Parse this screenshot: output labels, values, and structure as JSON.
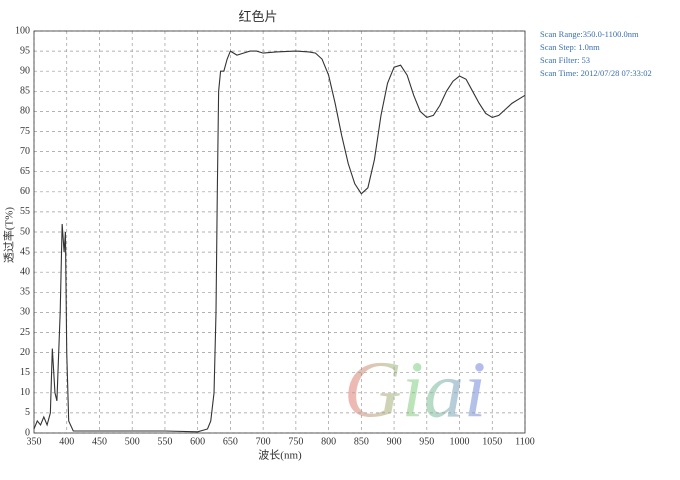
{
  "chart_data": {
    "type": "line",
    "title": "红色片",
    "x_label": "波长(nm)",
    "y_label": "透过率(T%)",
    "annotations": [
      "Scan Range:350.0-1100.0nm",
      "Scan Step:  1.0nm",
      "Scan Filter:  53",
      "Scan Time: 2012/07/28  07:33:02"
    ],
    "watermark": "Giai",
    "color": "#333333",
    "grid": true,
    "x": [
      350,
      355,
      360,
      365,
      370,
      375,
      378,
      382,
      385,
      390,
      393,
      396,
      398,
      400,
      403,
      410,
      450,
      500,
      550,
      600,
      615,
      620,
      625,
      628,
      630,
      632,
      635,
      640,
      645,
      650,
      655,
      660,
      670,
      680,
      690,
      700,
      720,
      750,
      770,
      780,
      790,
      800,
      810,
      820,
      830,
      840,
      850,
      860,
      870,
      880,
      890,
      900,
      910,
      920,
      930,
      940,
      950,
      960,
      970,
      980,
      990,
      1000,
      1010,
      1020,
      1030,
      1040,
      1050,
      1060,
      1070,
      1080,
      1090,
      1100
    ],
    "values": [
      1,
      3,
      2,
      4,
      2,
      5,
      21,
      10,
      8,
      30,
      52,
      45,
      50,
      20,
      3,
      0.5,
      0.5,
      0.5,
      0.5,
      0.3,
      1,
      3,
      10,
      30,
      60,
      85,
      90,
      90,
      93,
      95,
      94.5,
      94,
      94.5,
      95,
      95,
      94.5,
      94.8,
      95,
      94.8,
      94.5,
      93,
      89,
      82,
      74,
      67,
      62,
      59.5,
      61,
      68,
      79,
      87,
      91,
      91.5,
      89,
      84,
      80,
      78.5,
      79,
      81.5,
      85,
      87.5,
      88.8,
      88,
      85,
      82,
      79.5,
      78.5,
      79,
      80.5,
      82,
      83,
      84
    ],
    "xlim": [
      350,
      1100
    ],
    "xticks": [
      350,
      400,
      450,
      500,
      550,
      600,
      650,
      700,
      750,
      800,
      850,
      900,
      950,
      1000,
      1050,
      1100
    ],
    "ylim": [
      0,
      100
    ],
    "yticks": [
      0,
      5,
      10,
      15,
      20,
      25,
      30,
      35,
      40,
      45,
      50,
      55,
      60,
      65,
      70,
      75,
      80,
      85,
      90,
      95,
      100
    ]
  }
}
